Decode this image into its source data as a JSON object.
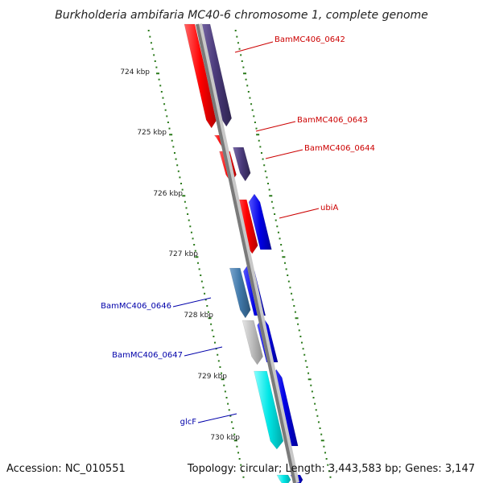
{
  "title": "Burkholderia ambifaria MC40-6 chromosome 1, complete genome",
  "footer": {
    "accession": "Accession: NC_010551",
    "topology": "Topology: circular; Length: 3,443,583 bp; Genes: 3,147"
  },
  "ticks": [
    "724 kbp",
    "725 kbp",
    "726 kbp",
    "727 kbp",
    "728 kbp",
    "729 kbp",
    "730 kbp"
  ],
  "genes_right": [
    {
      "name": "BamMC406_0642",
      "color": "#cc0000"
    },
    {
      "name": "BamMC406_0643",
      "color": "#cc0000"
    },
    {
      "name": "BamMC406_0644",
      "color": "#cc0000"
    },
    {
      "name": "ubiA",
      "color": "#cc0000"
    }
  ],
  "genes_left": [
    {
      "name": "BamMC406_0646",
      "color": "#0000aa"
    },
    {
      "name": "BamMC406_0647",
      "color": "#0000aa"
    },
    {
      "name": "glcF",
      "color": "#0000aa"
    }
  ],
  "colors": {
    "backbone": "#888888",
    "tick_marks": "#2a7a1a",
    "red_gene": "#ff1a1a",
    "purple_gene": "#4a3a7a",
    "blue_gene": "#0000e0",
    "steel_gene": "#3f77a8",
    "gray_gene": "#bbbbbb",
    "cyan_gene": "#00dddd"
  }
}
